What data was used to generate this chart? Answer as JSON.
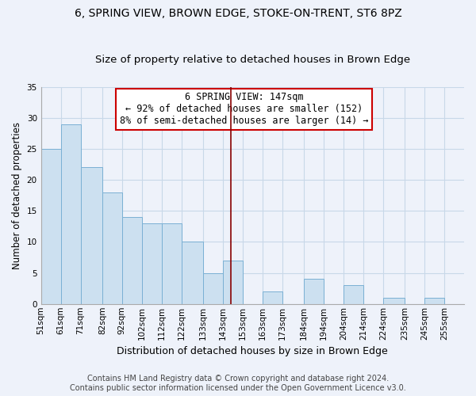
{
  "title1": "6, SPRING VIEW, BROWN EDGE, STOKE-ON-TRENT, ST6 8PZ",
  "title2": "Size of property relative to detached houses in Brown Edge",
  "xlabel": "Distribution of detached houses by size in Brown Edge",
  "ylabel": "Number of detached properties",
  "bin_labels": [
    "51sqm",
    "61sqm",
    "71sqm",
    "82sqm",
    "92sqm",
    "102sqm",
    "112sqm",
    "122sqm",
    "133sqm",
    "143sqm",
    "153sqm",
    "163sqm",
    "173sqm",
    "184sqm",
    "194sqm",
    "204sqm",
    "214sqm",
    "224sqm",
    "235sqm",
    "245sqm",
    "255sqm"
  ],
  "bin_edges": [
    51,
    61,
    71,
    82,
    92,
    102,
    112,
    122,
    133,
    143,
    153,
    163,
    173,
    184,
    194,
    204,
    214,
    224,
    235,
    245,
    255
  ],
  "bar_heights": [
    25,
    29,
    22,
    18,
    14,
    13,
    13,
    10,
    5,
    7,
    0,
    2,
    0,
    4,
    0,
    3,
    0,
    1,
    0,
    1,
    0
  ],
  "bar_color": "#cce0f0",
  "bar_edge_color": "#7ab0d4",
  "property_line_x": 147,
  "property_line_color": "#880000",
  "annotation_text": "6 SPRING VIEW: 147sqm\n← 92% of detached houses are smaller (152)\n8% of semi-detached houses are larger (14) →",
  "annotation_box_color": "#ffffff",
  "annotation_box_edge_color": "#cc0000",
  "ylim": [
    0,
    35
  ],
  "yticks": [
    0,
    5,
    10,
    15,
    20,
    25,
    30,
    35
  ],
  "grid_color": "#c8d8e8",
  "footer1": "Contains HM Land Registry data © Crown copyright and database right 2024.",
  "footer2": "Contains public sector information licensed under the Open Government Licence v3.0.",
  "background_color": "#eef2fa",
  "title_fontsize": 10,
  "subtitle_fontsize": 9.5,
  "xlabel_fontsize": 9,
  "ylabel_fontsize": 8.5,
  "tick_fontsize": 7.5,
  "annotation_fontsize": 8.5,
  "footer_fontsize": 7
}
